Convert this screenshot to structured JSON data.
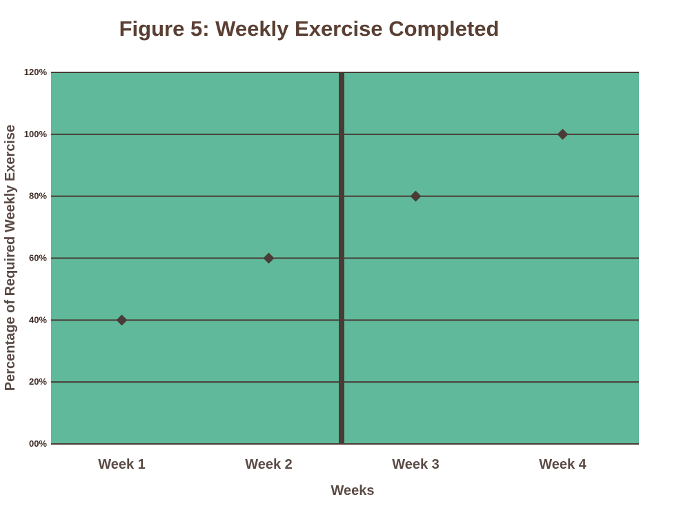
{
  "chart_data": {
    "type": "scatter",
    "title": "Figure 5: Weekly Exercise Completed",
    "xlabel": "Weeks",
    "ylabel": "Percentage of Required Weekly Exercise",
    "categories": [
      "Week 1",
      "Week 2",
      "Week 3",
      "Week 4"
    ],
    "values": [
      40,
      60,
      80,
      100
    ],
    "ylim": [
      0,
      120
    ],
    "yticks": [
      0,
      20,
      40,
      60,
      80,
      100,
      120
    ],
    "ytick_labels": [
      "00%",
      "20%",
      "40%",
      "60%",
      "80%",
      "100%",
      "120%"
    ],
    "grid": "horizontal",
    "phase_change_line_after_category": "Week 2",
    "marker": "diamond",
    "colors": {
      "plot_background": "#5fb99a",
      "gridline": "#4a3b36",
      "marker": "#4a3b36",
      "phase_line": "#4a3b36",
      "title": "#5a3f33"
    }
  }
}
